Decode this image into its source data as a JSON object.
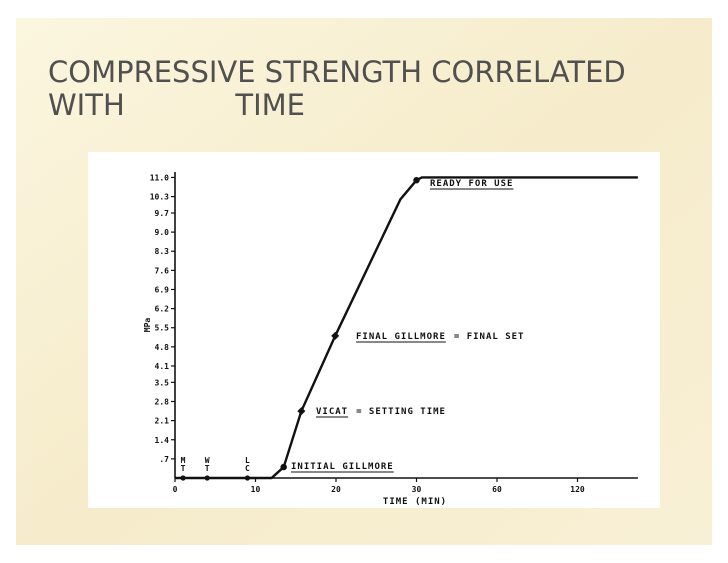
{
  "chart_data": {
    "type": "line",
    "title_lines": [
      "COMPRESSIVE STRENGTH CORRELATED",
      "WITH            TIME"
    ],
    "y_label": "MPa",
    "x_label": "TIME (MIN)",
    "xticks": [
      0,
      10,
      20,
      30,
      60,
      120
    ],
    "xlim": [
      0,
      165
    ],
    "ylim": [
      0,
      11.2
    ],
    "yticks": [
      {
        "value": 0.7,
        "label": ".7"
      },
      1.4,
      2.1,
      2.8,
      3.5,
      4.1,
      4.8,
      5.5,
      6.2,
      6.9,
      7.6,
      8.3,
      {
        "value": 9,
        "label": "9.0"
      },
      9.7,
      10.3,
      {
        "value": 11,
        "label": "11.0"
      }
    ],
    "series": [
      {
        "color": "#111111",
        "x": [
          0,
          1,
          4,
          9,
          12,
          13.5,
          15.7,
          19.9,
          28,
          30,
          32,
          165
        ],
        "values": [
          0,
          0,
          0,
          0,
          0,
          0.4,
          2.45,
          5.2,
          10.2,
          10.9,
          11,
          11
        ]
      }
    ],
    "point_labels": [
      [
        "M",
        "T"
      ],
      [
        "W",
        "T"
      ],
      [
        "L",
        "C"
      ]
    ],
    "annotations": [
      [
        "READY FOR USE",
        ""
      ],
      [
        "FINAL GILLMORE",
        "= FINAL SET"
      ],
      [
        "VICAT",
        "= SETTING TIME"
      ],
      [
        "INITIAL GILLMORE",
        ""
      ]
    ]
  }
}
